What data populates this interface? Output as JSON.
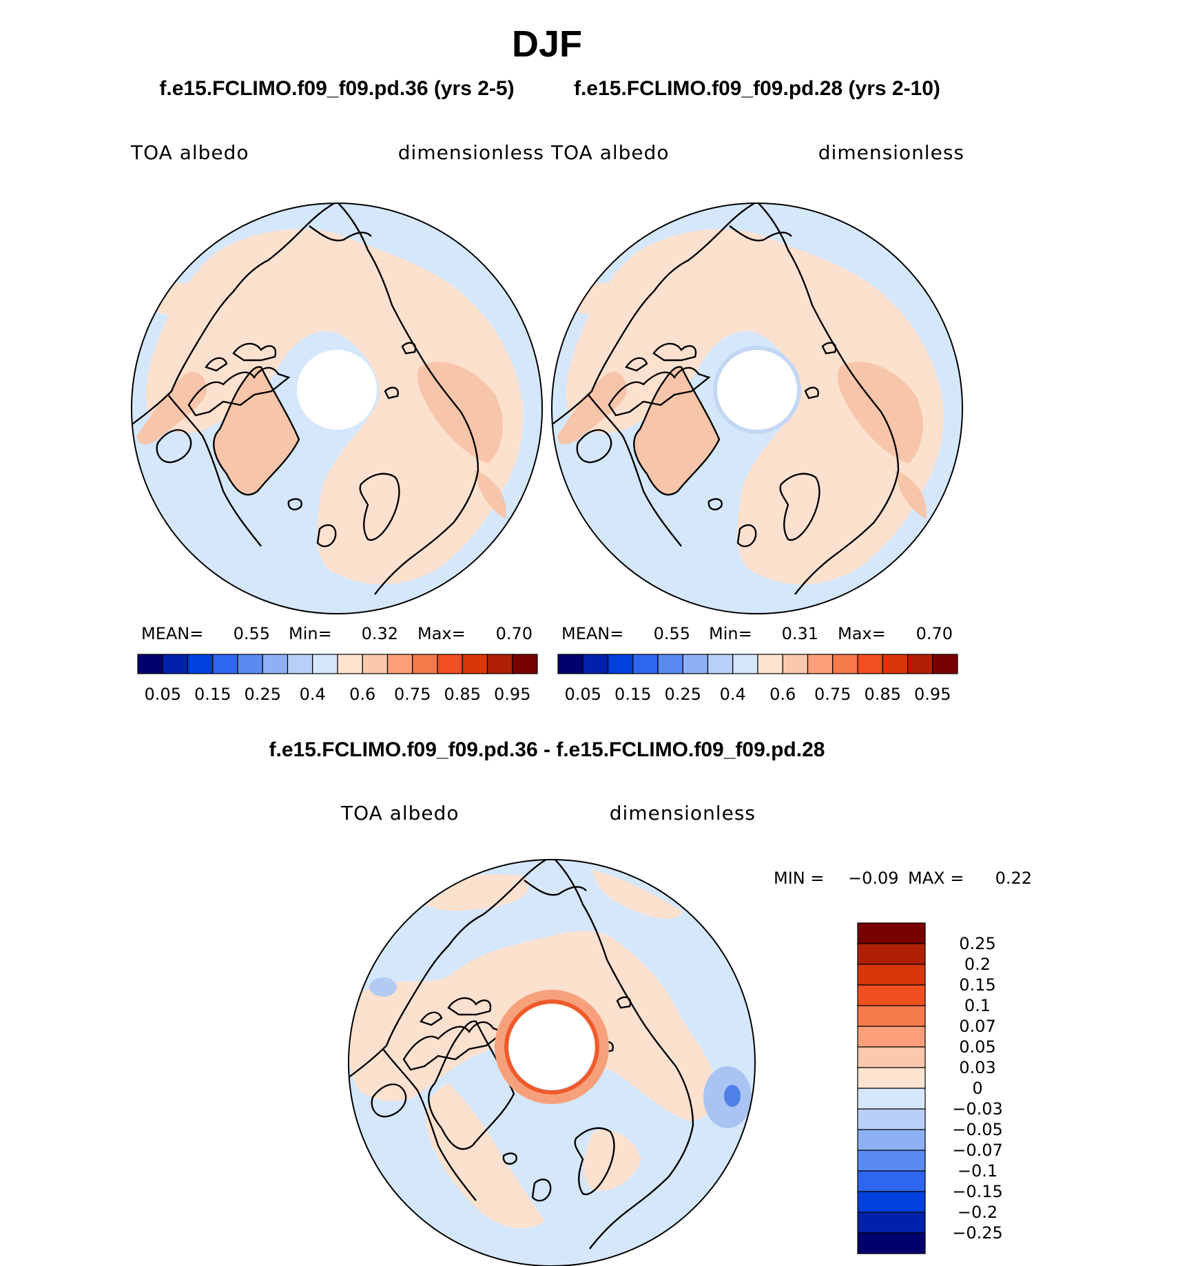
{
  "title": "DJF",
  "panel_headers": [
    "f.e15.FCLIMO.f09_f09.pd.36 (yrs 2-5)",
    "f.e15.FCLIMO.f09_f09.pd.28 (yrs 2-10)"
  ],
  "diff_header": "f.e15.FCLIMO.f09_f09.pd.36 - f.e15.FCLIMO.f09_f09.pd.28",
  "colors": {
    "map_low": "#d5e7fb",
    "map_high": "#fde1cf",
    "map_land": "#f7c5aa",
    "map_mid_blue": "#c3d7f3",
    "map_mid_orange": "#f9d4bb",
    "outline": "#000000"
  },
  "chart_data": [
    {
      "type": "heatmap",
      "projection": "north polar stereographic",
      "variable": "TOA albedo",
      "units": "dimensionless",
      "stats": {
        "mean_label": "MEAN=",
        "mean": "0.55",
        "min_label": "Min=",
        "min": "0.32",
        "max_label": "Max=",
        "max": "0.70"
      },
      "colorbar": {
        "orientation": "horizontal",
        "levels": [
          "0.05",
          "0.15",
          "0.25",
          "0.4",
          "0.6",
          "0.75",
          "0.85",
          "0.95"
        ],
        "colors": [
          "#00006e",
          "#0022aa",
          "#0040dd",
          "#2e66f0",
          "#5a8bf2",
          "#8eb0f5",
          "#b9cff7",
          "#d6e7fb",
          "#fde4d1",
          "#fbc8ad",
          "#fa9f7a",
          "#f77a4c",
          "#f05020",
          "#d83708",
          "#b02005",
          "#7a0000"
        ]
      }
    },
    {
      "type": "heatmap",
      "projection": "north polar stereographic",
      "variable": "TOA albedo",
      "units": "dimensionless",
      "stats": {
        "mean_label": "MEAN=",
        "mean": "0.55",
        "min_label": "Min=",
        "min": "0.31",
        "max_label": "Max=",
        "max": "0.70"
      },
      "colorbar": {
        "orientation": "horizontal",
        "levels": [
          "0.05",
          "0.15",
          "0.25",
          "0.4",
          "0.6",
          "0.75",
          "0.85",
          "0.95"
        ],
        "colors": [
          "#00006e",
          "#0022aa",
          "#0040dd",
          "#2e66f0",
          "#5a8bf2",
          "#8eb0f5",
          "#b9cff7",
          "#d6e7fb",
          "#fde4d1",
          "#fbc8ad",
          "#fa9f7a",
          "#f77a4c",
          "#f05020",
          "#d83708",
          "#b02005",
          "#7a0000"
        ]
      }
    },
    {
      "type": "heatmap",
      "projection": "north polar stereographic",
      "variable": "TOA albedo",
      "units": "dimensionless",
      "stats": {
        "min_label": "MIN =",
        "min": "−0.09",
        "max_label": "MAX =",
        "max": "0.22"
      },
      "colorbar": {
        "orientation": "vertical",
        "levels": [
          "0.25",
          "0.2",
          "0.15",
          "0.1",
          "0.07",
          "0.05",
          "0.03",
          "0",
          "−0.03",
          "−0.05",
          "−0.07",
          "−0.1",
          "−0.15",
          "−0.2",
          "−0.25"
        ],
        "colors": [
          "#7a0000",
          "#b02005",
          "#d83708",
          "#f05020",
          "#f77a4c",
          "#fa9f7a",
          "#fbc8ad",
          "#fde4d1",
          "#d6e7fb",
          "#b9cff7",
          "#8eb0f5",
          "#5a8bf2",
          "#2e66f0",
          "#0040dd",
          "#0022aa",
          "#00006e"
        ]
      }
    }
  ]
}
